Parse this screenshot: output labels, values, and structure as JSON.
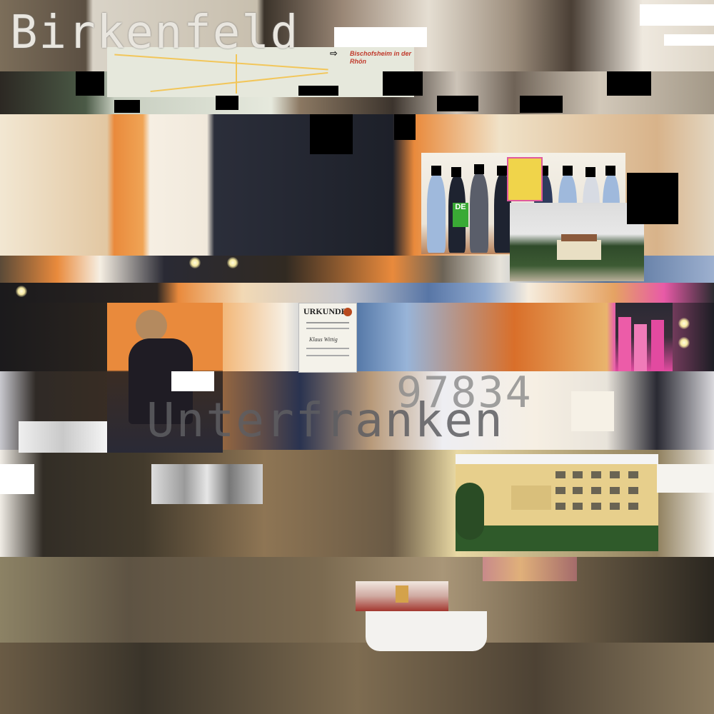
{
  "collage": {
    "title": "Birkenfeld",
    "postal_code": "97834",
    "region": "Unterfranken"
  },
  "map_inset": {
    "label_line1": "Bischofsheim in der",
    "label_line2": "Rhön",
    "arrow_icon": "arrow-right-icon"
  },
  "certificate": {
    "heading": "URKUNDE",
    "name": "Klaus Wittig"
  },
  "flag_text": "DE",
  "colors": {
    "orange_wall": "#e98a3c",
    "cream": "#f0e6cf",
    "floor": "#5a4c35",
    "title_text": "#e9e6df"
  }
}
